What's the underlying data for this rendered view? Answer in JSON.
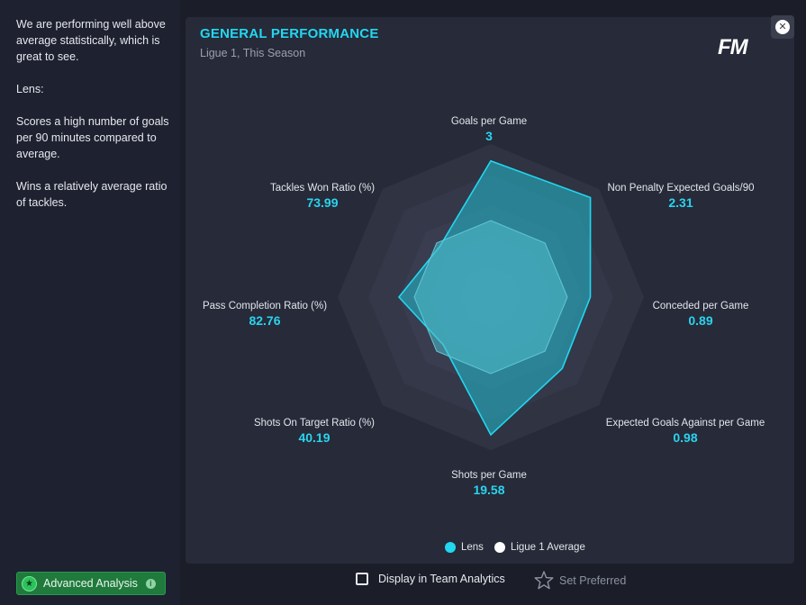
{
  "analysis": {
    "paragraphs": [
      "We are performing well above average statistically, which is great to see.",
      "Lens:",
      "Scores a high number of goals per 90 minutes compared to average.",
      "Wins a relatively average ratio of tackles."
    ]
  },
  "advanced_button": {
    "label": "Advanced Analysis"
  },
  "card": {
    "title": "GENERAL PERFORMANCE",
    "subtitle": "Ligue 1, This Season",
    "logo": "FM"
  },
  "metrics": [
    {
      "name": "Goals per Game",
      "value": "3"
    },
    {
      "name": "Non Penalty Expected Goals/90",
      "value": "2.31"
    },
    {
      "name": "Conceded per Game",
      "value": "0.89"
    },
    {
      "name": "Expected Goals Against per Game",
      "value": "0.98"
    },
    {
      "name": "Shots per Game",
      "value": "19.58"
    },
    {
      "name": "Shots On Target Ratio (%)",
      "value": "40.19"
    },
    {
      "name": "Pass Completion Ratio (%)",
      "value": "82.76"
    },
    {
      "name": "Tackles Won Ratio (%)",
      "value": "73.99"
    }
  ],
  "legend": {
    "team": "Lens",
    "average": "Ligue 1 Average",
    "team_color": "#22d7f0",
    "average_color": "#ffffff"
  },
  "chart_data": {
    "type": "radar",
    "axes": [
      "Goals per Game",
      "Non Penalty Expected Goals/90",
      "Conceded per Game",
      "Expected Goals Against per Game",
      "Shots per Game",
      "Shots On Target Ratio (%)",
      "Pass Completion Ratio (%)",
      "Tackles Won Ratio (%)"
    ],
    "series": [
      {
        "name": "Lens",
        "normalized": [
          0.89,
          0.92,
          0.65,
          0.66,
          0.9,
          0.44,
          0.6,
          0.47
        ]
      },
      {
        "name": "Ligue 1 Average",
        "normalized": [
          0.5,
          0.5,
          0.5,
          0.5,
          0.5,
          0.5,
          0.5,
          0.5
        ]
      }
    ],
    "rings": 5
  },
  "display_team_analytics": {
    "label": "Display in Team Analytics",
    "checked": false
  },
  "set_preferred": {
    "label": "Set Preferred"
  }
}
